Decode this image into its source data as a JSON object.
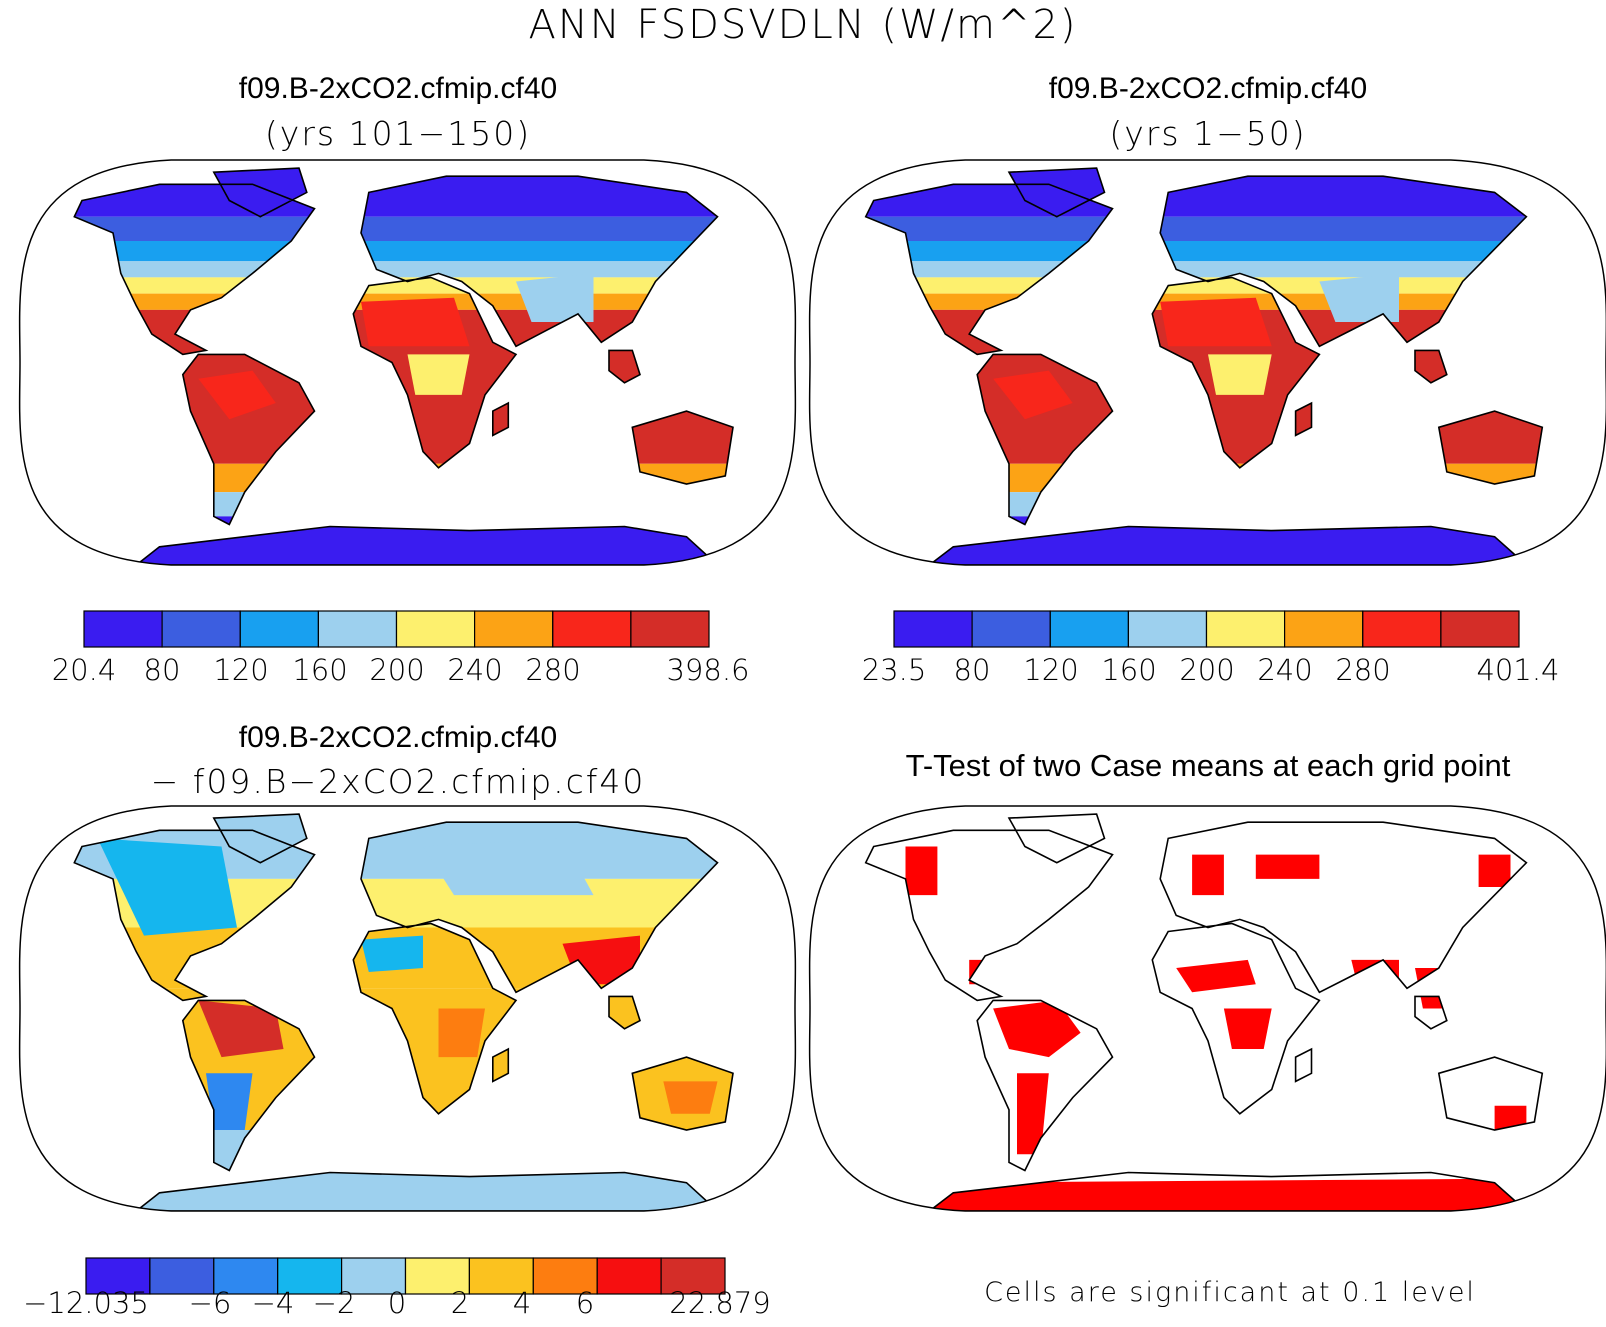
{
  "title": "ANN FSDSVDLN (W/m^2)",
  "panels": {
    "top_left": {
      "case": "f09.B-2xCO2.cfmip.cf40",
      "period": "(yrs 101−150)"
    },
    "top_right": {
      "case": "f09.B-2xCO2.cfmip.cf40",
      "period": "(yrs 1−50)"
    },
    "bottom_left": {
      "case": "f09.B-2xCO2.cfmip.cf40",
      "minus_case": "− f09.B−2xCO2.cfmip.cf40"
    },
    "bottom_right": {
      "title": "T-Test of two Case means at each grid point",
      "note": "Cells are significant at 0.1 level"
    }
  },
  "colorbars": {
    "top_left": {
      "labels": [
        "20.4",
        "80",
        "120",
        "160",
        "200",
        "240",
        "280",
        "398.6"
      ],
      "colors": [
        "#3a1cf0",
        "#3c5ee0",
        "#18a0f0",
        "#9dd0ee",
        "#fdf06e",
        "#fca315",
        "#f8261b",
        "#d42d28"
      ]
    },
    "top_right": {
      "labels": [
        "23.5",
        "80",
        "120",
        "160",
        "200",
        "240",
        "280",
        "401.4"
      ],
      "colors": [
        "#3a1cf0",
        "#3c5ee0",
        "#18a0f0",
        "#9dd0ee",
        "#fdf06e",
        "#fca315",
        "#f8261b",
        "#d42d28"
      ]
    },
    "bottom_left": {
      "labels": [
        "−12.035",
        "−6",
        "−4",
        "−2",
        "0",
        "2",
        "4",
        "6",
        "22.879"
      ],
      "colors": [
        "#3a1cf0",
        "#3c5ee0",
        "#2e88f0",
        "#15b6ee",
        "#9dd0ee",
        "#fdf06e",
        "#fbc21f",
        "#fd7d10",
        "#f60f10",
        "#d42d28"
      ]
    }
  },
  "significance_color": "#ff0000"
}
